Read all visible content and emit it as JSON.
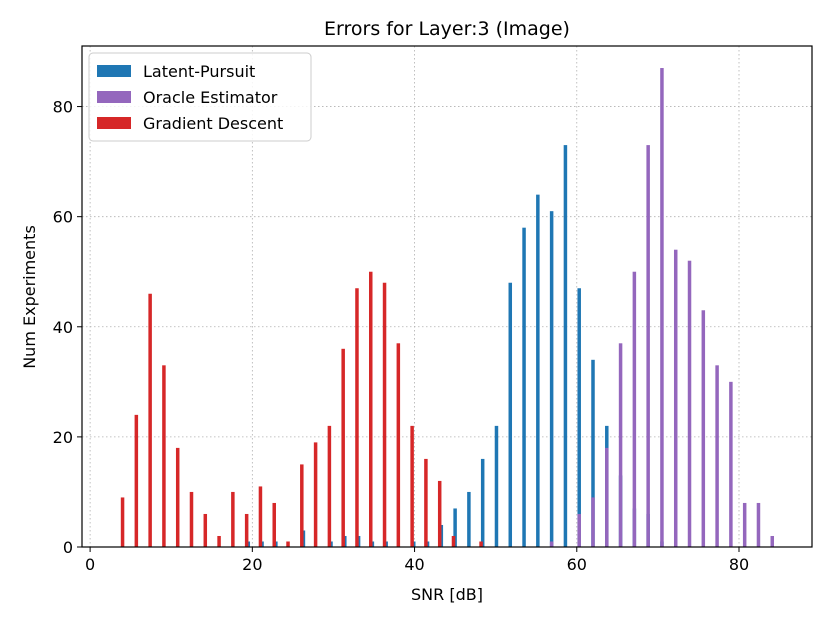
{
  "chart_data": {
    "type": "bar",
    "title": "Errors for Layer:3  (Image)",
    "xlabel": "SNR [dB]",
    "ylabel": "Num Experiments",
    "xlim": [
      -1,
      89
    ],
    "ylim": [
      0,
      91
    ],
    "xticks": [
      0,
      20,
      40,
      60,
      80
    ],
    "yticks": [
      0,
      20,
      40,
      60,
      80
    ],
    "grid": true,
    "legend_position": "top-left",
    "series": [
      {
        "name": "Latent-Pursuit",
        "color": "#1f77b4",
        "x": [
          19.5,
          21.2,
          22.9,
          24.6,
          26.3,
          28.0,
          29.7,
          31.4,
          33.1,
          34.8,
          36.5,
          38.2,
          39.9,
          41.6,
          43.3,
          45.0,
          46.7,
          48.4,
          50.1,
          51.8,
          53.5,
          55.2,
          56.9,
          58.6,
          60.3,
          62.0,
          63.7,
          65.4,
          67.1,
          68.8,
          70.5
        ],
        "values": [
          1,
          1,
          1,
          0,
          3,
          0,
          1,
          2,
          2,
          1,
          1,
          0,
          1,
          1,
          4,
          7,
          10,
          16,
          22,
          48,
          58,
          64,
          61,
          73,
          47,
          34,
          22,
          13,
          7,
          6,
          1
        ]
      },
      {
        "name": "Oracle Estimator",
        "color": "#9467bd",
        "x": [
          56.9,
          60.3,
          62.0,
          63.7,
          65.4,
          67.1,
          68.8,
          70.5,
          72.2,
          73.9,
          75.6,
          77.3,
          79.0,
          80.7,
          82.4,
          84.1
        ],
        "values": [
          1,
          6,
          9,
          18,
          37,
          50,
          73,
          87,
          54,
          52,
          43,
          33,
          30,
          8,
          8,
          2
        ]
      },
      {
        "name": "Gradient Descent",
        "color": "#d62728",
        "x": [
          4.0,
          5.7,
          7.4,
          9.1,
          10.8,
          12.5,
          14.2,
          15.9,
          17.6,
          19.3,
          21.0,
          22.7,
          24.4,
          26.1,
          27.8,
          29.5,
          31.2,
          32.9,
          34.6,
          36.3,
          38.0,
          39.7,
          41.4,
          43.1,
          44.8,
          48.2
        ],
        "values": [
          9,
          24,
          46,
          33,
          18,
          10,
          6,
          2,
          10,
          6,
          11,
          8,
          1,
          15,
          19,
          22,
          36,
          47,
          50,
          48,
          37,
          22,
          16,
          12,
          2,
          1
        ]
      }
    ]
  }
}
